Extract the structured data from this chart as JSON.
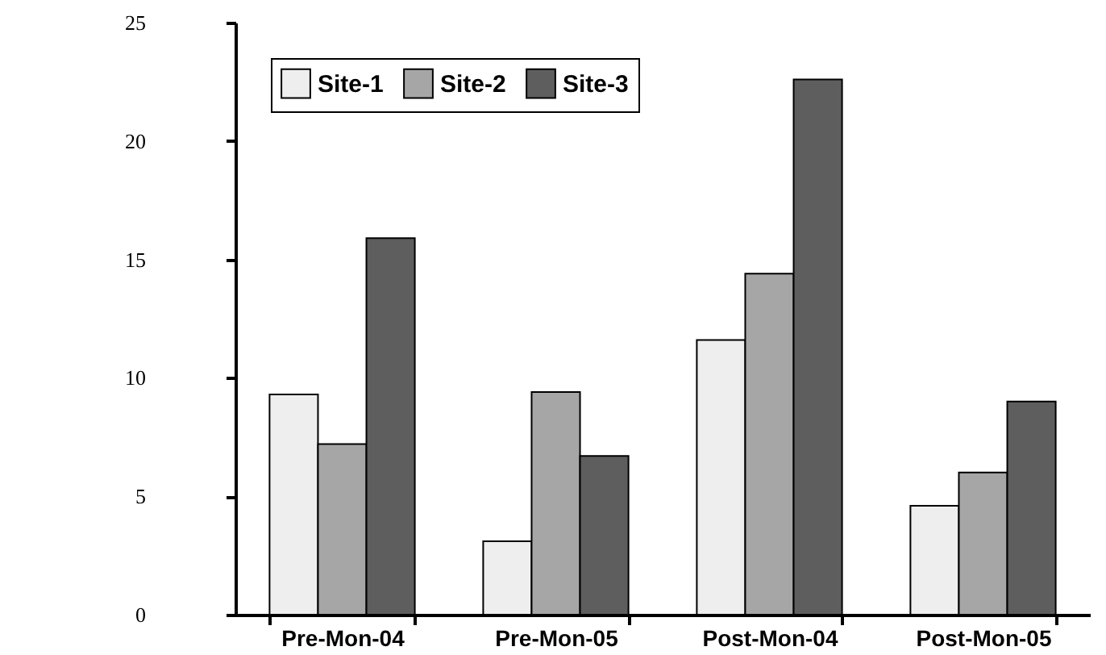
{
  "chart_data": {
    "type": "bar",
    "categories": [
      "Pre-Mon-04",
      "Pre-Mon-05",
      "Post-Mon-04",
      "Post-Mon-05"
    ],
    "series": [
      {
        "name": "Site-1",
        "color": "#eeeeee",
        "values": [
          9.3,
          3.1,
          11.6,
          4.6
        ]
      },
      {
        "name": "Site-2",
        "color": "#a6a6a6",
        "values": [
          7.2,
          9.4,
          14.4,
          6.0
        ]
      },
      {
        "name": "Site-3",
        "color": "#5e5e5e",
        "values": [
          15.9,
          6.7,
          22.6,
          9.0
        ]
      }
    ],
    "ylim": [
      0,
      25
    ],
    "yticks": [
      0,
      5,
      10,
      15,
      20,
      25
    ],
    "grid": false,
    "legend": "top left"
  }
}
